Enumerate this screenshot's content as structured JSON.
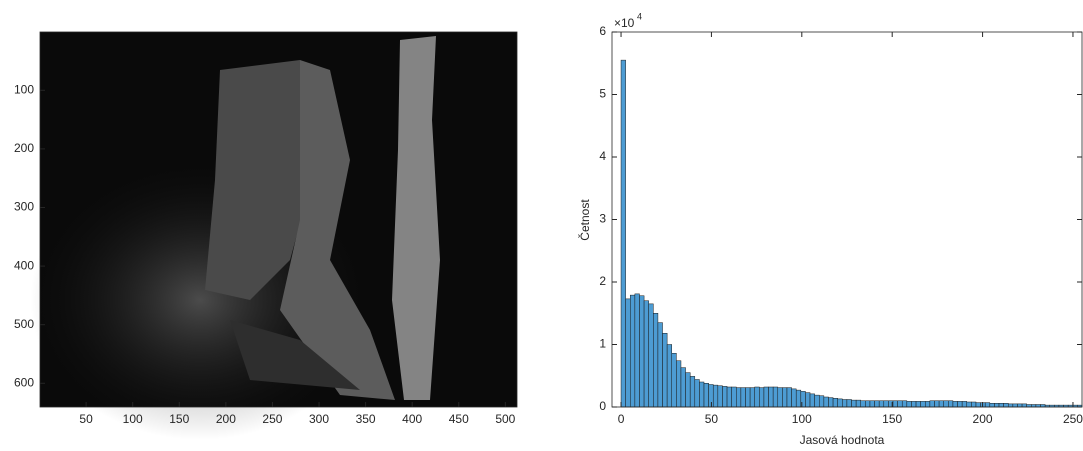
{
  "chart_data": [
    {
      "type": "image",
      "xlim": [
        0.5,
        512.5
      ],
      "ylim": [
        0.5,
        640.5
      ],
      "y_reversed": true,
      "xticks": [
        50,
        100,
        150,
        200,
        250,
        300,
        350,
        400,
        450,
        500
      ],
      "yticks": [
        100,
        200,
        300,
        400,
        500,
        600
      ]
    },
    {
      "type": "histogram",
      "xlabel": "Jasová hodnota",
      "ylabel": "Četnost",
      "color": "#4d9cd3",
      "edgecolor": "#1a1a1a",
      "y_multiplier_base": "×10",
      "y_multiplier_exponent": "4",
      "xlim": [
        -5,
        255
      ],
      "ylim": [
        0,
        60000
      ],
      "xticks": [
        0,
        50,
        100,
        150,
        200,
        250
      ],
      "yticks": [
        {
          "value": 0,
          "label": "0"
        },
        {
          "value": 10000,
          "label": "1"
        },
        {
          "value": 20000,
          "label": "2"
        },
        {
          "value": 30000,
          "label": "3"
        },
        {
          "value": 40000,
          "label": "4"
        },
        {
          "value": 50000,
          "label": "5"
        },
        {
          "value": 60000,
          "label": "6"
        }
      ],
      "bins": [
        0,
        2.55,
        5.1,
        7.65,
        10.2,
        12.75,
        15.3,
        17.85,
        20.4,
        22.95,
        25.5,
        28.05,
        30.6,
        33.15,
        35.7,
        38.25,
        40.8,
        43.35,
        45.9,
        48.45,
        51,
        53.55,
        56.1,
        58.65,
        61.2,
        63.75,
        66.3,
        68.85,
        71.4,
        73.95,
        76.5,
        79.05,
        81.6,
        84.15,
        86.7,
        89.25,
        91.8,
        94.35,
        96.9,
        99.45,
        102,
        104.55,
        107.1,
        109.65,
        112.2,
        114.75,
        117.3,
        119.85,
        122.4,
        124.95,
        127.5,
        130.05,
        132.6,
        135.15,
        137.7,
        140.25,
        142.8,
        145.35,
        147.9,
        150.45,
        153,
        155.55,
        158.1,
        160.65,
        163.2,
        165.75,
        168.3,
        170.85,
        173.4,
        175.95,
        178.5,
        181.05,
        183.6,
        186.15,
        188.7,
        191.25,
        193.8,
        196.35,
        198.9,
        201.45,
        204,
        206.55,
        209.1,
        211.65,
        214.2,
        216.75,
        219.3,
        221.85,
        224.4,
        226.95,
        229.5,
        232.05,
        234.6,
        237.15,
        239.7,
        242.25,
        244.8,
        247.35,
        249.9,
        252.45,
        255
      ],
      "values": [
        55500,
        17300,
        17900,
        18100,
        17800,
        17000,
        16500,
        15000,
        13500,
        11800,
        10000,
        8600,
        7400,
        6300,
        5500,
        4900,
        4400,
        4000,
        3800,
        3600,
        3500,
        3400,
        3300,
        3200,
        3200,
        3100,
        3100,
        3100,
        3100,
        3200,
        3100,
        3200,
        3200,
        3200,
        3100,
        3100,
        3100,
        2900,
        2700,
        2500,
        2300,
        2100,
        1900,
        1800,
        1600,
        1500,
        1400,
        1300,
        1200,
        1200,
        1100,
        1100,
        1000,
        1000,
        1000,
        1000,
        1000,
        1000,
        1000,
        1000,
        1000,
        1000,
        900,
        900,
        900,
        900,
        900,
        1000,
        1000,
        1000,
        1000,
        1000,
        900,
        900,
        900,
        800,
        800,
        700,
        700,
        700,
        600,
        600,
        600,
        600,
        500,
        500,
        500,
        500,
        400,
        400,
        400,
        400,
        300,
        300,
        300,
        300,
        300,
        300,
        300,
        300
      ]
    }
  ]
}
